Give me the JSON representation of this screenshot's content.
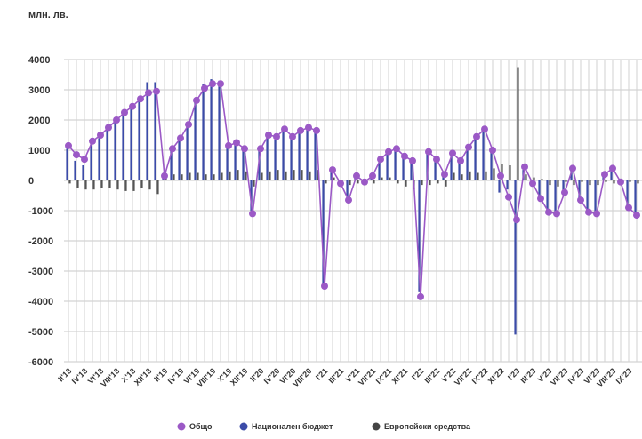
{
  "chart_data": {
    "type": "bar",
    "unit_label": "млн. лв.",
    "ylim": [
      -6000,
      4000
    ],
    "yticks": [
      4000,
      3000,
      2000,
      1000,
      0,
      -1000,
      -2000,
      -3000,
      -4000,
      -5000,
      -6000
    ],
    "grid": true,
    "legend_position": "bottom",
    "categories": [
      "I'18",
      "II'18",
      "III'18",
      "IV'18",
      "V'18",
      "VI'18",
      "VII'18",
      "VIII'18",
      "IX'18",
      "X'18",
      "XI'18",
      "XII'18",
      "I'19",
      "II'19",
      "III'19",
      "IV'19",
      "V'19",
      "VI'19",
      "VII'19",
      "VIII'19",
      "IX'19",
      "X'19",
      "XI'19",
      "XII'19",
      "I'20",
      "II'20",
      "III'20",
      "IV'20",
      "V'20",
      "VI'20",
      "VII'20",
      "VIII'20",
      "IX'20",
      "X'20",
      "XI'20",
      "XII'20",
      "I'21",
      "II'21",
      "III'21",
      "IV'21",
      "V'21",
      "VI'21",
      "VII'21",
      "VIII'21",
      "IX'21",
      "X'21",
      "XI'21",
      "XII'21",
      "I'22",
      "II'22",
      "III'22",
      "IV'22",
      "V'22",
      "VI'22",
      "VII'22",
      "VIII'22",
      "IX'22",
      "X'22",
      "XI'22",
      "XII'22",
      "I'23",
      "II'23",
      "III'23",
      "IV'23",
      "V'23",
      "VI'23",
      "VII'23",
      "VIII'23",
      "IX'23",
      "X'23",
      "XI'23",
      "XII'23"
    ],
    "tick_labels": [
      "II'18",
      "",
      "IV'18",
      "",
      "VI'18",
      "",
      "VIII'18",
      "",
      "X'18",
      "",
      "XII'18",
      "",
      "II'19",
      "",
      "IV'19",
      "",
      "VI'19",
      "",
      "VIII'19",
      "",
      "X'19",
      "",
      "XII'19",
      "",
      "II'20",
      "",
      "IV'20",
      "",
      "VI'20",
      "",
      "VIII'20",
      "",
      "I'21",
      "",
      "III'21",
      "",
      "V'21",
      "",
      "VII'21",
      "",
      "IX'21",
      "",
      "XI'21",
      "",
      "I'22",
      "",
      "III'22",
      "",
      "V'22",
      "",
      "VII'22",
      "",
      "IX'22",
      "",
      "XI'22",
      "",
      "I'23",
      "",
      "III'23",
      "",
      "V'23",
      "",
      "VII'23",
      "",
      "IV'23",
      "",
      "VI'23",
      "",
      "VIII'23",
      "",
      "IX'23",
      ""
    ],
    "series": [
      {
        "name": "Общо",
        "color": "#9b59c6",
        "values": [
          1150,
          850,
          700,
          1300,
          1500,
          1750,
          2000,
          2250,
          2450,
          2700,
          2900,
          2950,
          150,
          1050,
          1400,
          1850,
          2650,
          3050,
          3200,
          3200,
          1150,
          1250,
          1050,
          -1100,
          1050,
          1500,
          1450,
          1700,
          1450,
          1650,
          1750,
          1650,
          -3500,
          350,
          -100,
          -650,
          150,
          -50,
          150,
          700,
          950,
          1050,
          800,
          650,
          -3850,
          950,
          700,
          200,
          900,
          650,
          1100,
          1450,
          1700,
          1000,
          150,
          -550,
          -1300,
          450,
          -100,
          -600,
          -1050,
          -1100,
          -400,
          400,
          -650,
          -1050,
          -1100,
          200,
          400,
          -50,
          -900,
          -1150
        ]
      },
      {
        "name": "Национален бюджет",
        "color": "#3b4ba8",
        "values": [
          1050,
          650,
          500,
          1200,
          1400,
          1700,
          1950,
          2200,
          2400,
          2700,
          3250,
          3250,
          100,
          1000,
          1350,
          1800,
          2650,
          3200,
          3350,
          3300,
          1100,
          1200,
          1000,
          -1000,
          1000,
          1400,
          1350,
          1650,
          1400,
          1600,
          1700,
          1600,
          -3400,
          300,
          -150,
          -650,
          100,
          -100,
          100,
          650,
          900,
          1000,
          750,
          600,
          -3700,
          900,
          650,
          150,
          850,
          600,
          1050,
          1400,
          1650,
          950,
          -400,
          -300,
          -5100,
          350,
          -150,
          -650,
          -1000,
          -1050,
          -400,
          350,
          -650,
          -1000,
          -1050,
          150,
          350,
          -100,
          -850,
          -1100
        ]
      },
      {
        "name": "Европейски средства",
        "color": "#555555",
        "values": [
          -100,
          -250,
          -300,
          -300,
          -250,
          -250,
          -300,
          -350,
          -350,
          -250,
          -300,
          -450,
          150,
          200,
          200,
          250,
          250,
          200,
          200,
          250,
          300,
          350,
          300,
          -200,
          250,
          300,
          350,
          300,
          350,
          350,
          300,
          350,
          -100,
          100,
          -100,
          -150,
          -100,
          -150,
          -100,
          100,
          100,
          -100,
          -200,
          -300,
          -150,
          -150,
          -100,
          -200,
          250,
          200,
          300,
          250,
          300,
          400,
          550,
          500,
          3750,
          200,
          100,
          50,
          -150,
          -200,
          -50,
          -150,
          -50,
          -150,
          -150,
          -50,
          -100,
          -100,
          -50,
          -100
        ]
      }
    ]
  }
}
